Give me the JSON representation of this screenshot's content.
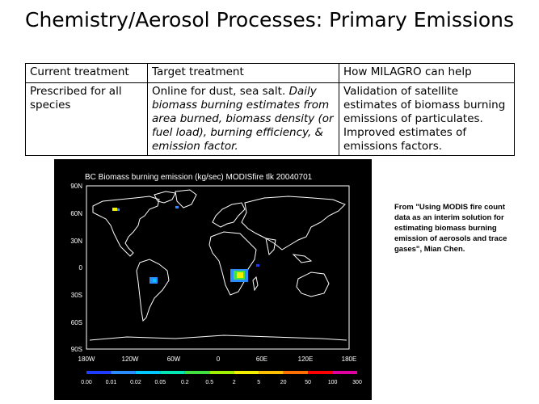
{
  "slide": {
    "title": "Chemistry/Aerosol Processes: Primary Emissions"
  },
  "table": {
    "headers": [
      "Current treatment",
      "Target treatment",
      "How MILAGRO can help"
    ],
    "row": {
      "current": "Prescribed for all species",
      "target_plain": "Online for dust, sea salt. ",
      "target_italic": "Daily biomass burning estimates from area burned, biomass density (or fuel load), burning efficiency, & emission factor.",
      "milagro": "Validation of satellite estimates of biomass burning emissions of particulates. Improved estimates of emissions factors."
    }
  },
  "map": {
    "title": "BC Biomass burning emission (kg/sec) MODISfire tlk 20040701",
    "lat_labels": [
      "90N",
      "60N",
      "30N",
      "0",
      "30S",
      "60S",
      "90S"
    ],
    "lon_labels": [
      "180W",
      "120W",
      "60W",
      "0",
      "60E",
      "120E",
      "180E"
    ],
    "colorbar_labels": [
      "0.00",
      "0.01",
      "0.02",
      "0.05",
      "0.2",
      "0.5",
      "2",
      "5",
      "20",
      "50",
      "100",
      "300"
    ],
    "colorbar_colors": [
      "#1e3cff",
      "#2a8cff",
      "#00c8ff",
      "#00e6b4",
      "#40e040",
      "#a0f000",
      "#f0f000",
      "#ffc000",
      "#ff7000",
      "#ff0000",
      "#e000a0",
      "#ffffff"
    ]
  },
  "caption": {
    "text": "From \"Using MODIS fire count data as an interim solution for estimating biomass burning emission of aerosols and trace gases\", Mian Chen."
  }
}
